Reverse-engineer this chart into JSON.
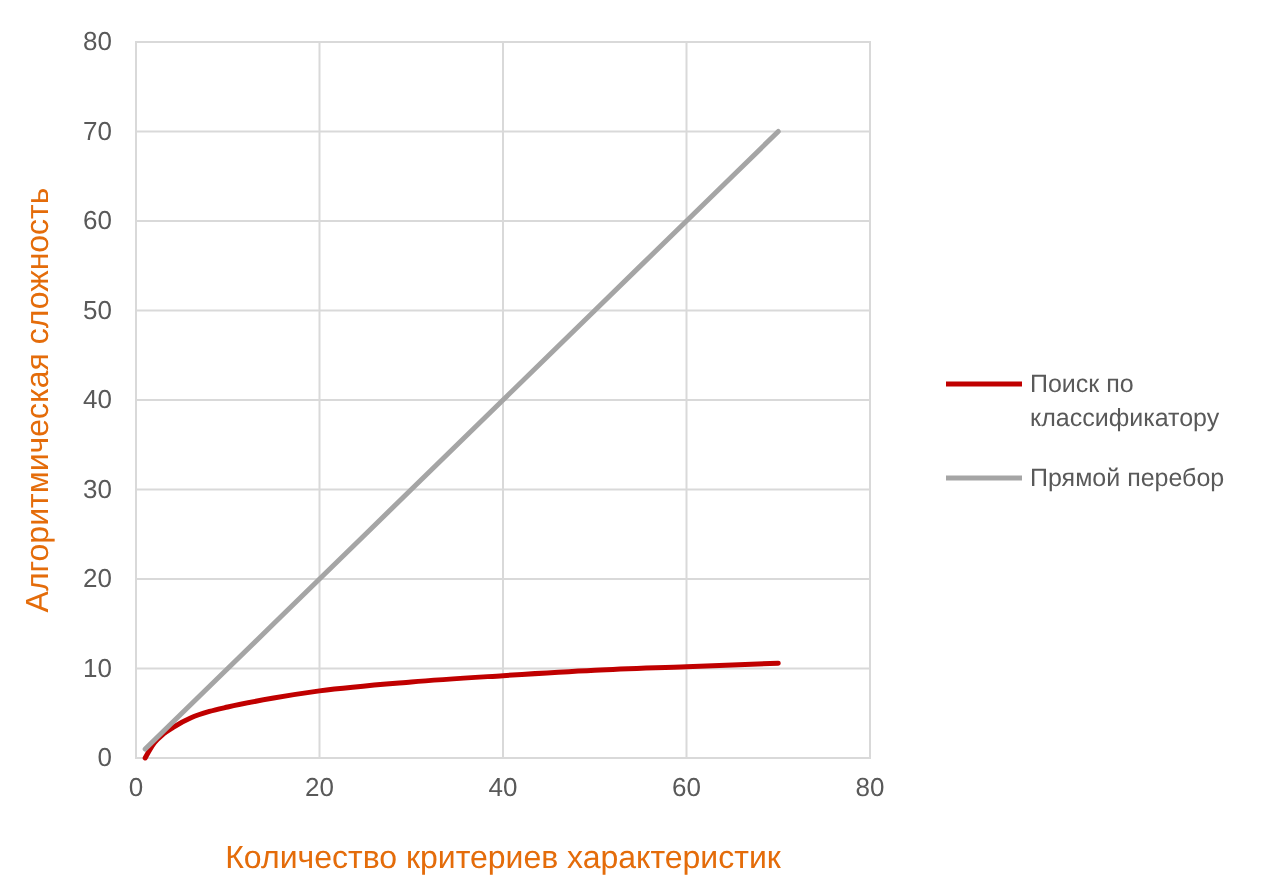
{
  "chart_data": {
    "type": "line",
    "xlabel": "Количество критериев характеристик",
    "ylabel": "Алгоритмическая сложность",
    "xlim": [
      0,
      80
    ],
    "xticks": [
      0,
      20,
      40,
      60,
      80
    ],
    "ylim": [
      0,
      80
    ],
    "yticks": [
      0,
      10,
      20,
      30,
      40,
      50,
      60,
      70,
      80
    ],
    "grid": true,
    "legend": "right",
    "marker": "none",
    "line_style": "solid",
    "series": [
      {
        "name": "Поиск по классификатору",
        "color": "#c00000",
        "x": [
          1,
          2,
          3,
          4,
          6,
          8,
          10,
          15,
          20,
          30,
          40,
          50,
          60,
          70
        ],
        "values": [
          0,
          1.7,
          2.7,
          3.4,
          4.5,
          5.2,
          5.7,
          6.7,
          7.5,
          8.5,
          9.2,
          9.8,
          10.2,
          10.6
        ]
      },
      {
        "name": "Прямой перебор",
        "color": "#a5a5a5",
        "x": [
          1,
          10,
          20,
          30,
          40,
          50,
          60,
          70
        ],
        "values": [
          1,
          10,
          20,
          30,
          40,
          50,
          60,
          70
        ]
      }
    ]
  }
}
